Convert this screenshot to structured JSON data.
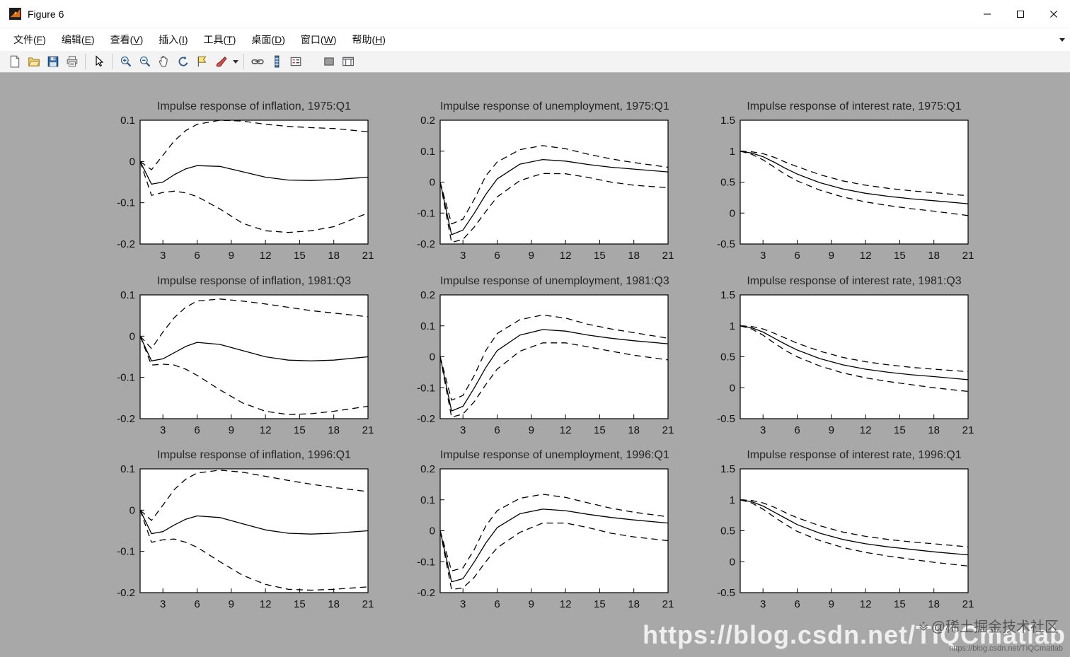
{
  "window": {
    "title": "Figure 6"
  },
  "menubar": {
    "items": [
      {
        "id": "file",
        "label": "文件(F)"
      },
      {
        "id": "edit",
        "label": "编辑(E)"
      },
      {
        "id": "view",
        "label": "查看(V)"
      },
      {
        "id": "insert",
        "label": "插入(I)"
      },
      {
        "id": "tools",
        "label": "工具(T)"
      },
      {
        "id": "desktop",
        "label": "桌面(D)"
      },
      {
        "id": "window",
        "label": "窗口(W)"
      },
      {
        "id": "help",
        "label": "帮助(H)"
      }
    ]
  },
  "toolbar": {
    "icons": [
      {
        "name": "new-figure-icon"
      },
      {
        "name": "open-file-icon"
      },
      {
        "name": "save-icon"
      },
      {
        "name": "print-icon"
      },
      {
        "name": "separator"
      },
      {
        "name": "edit-plot-icon"
      },
      {
        "name": "separator"
      },
      {
        "name": "zoom-in-icon"
      },
      {
        "name": "zoom-out-icon"
      },
      {
        "name": "pan-icon"
      },
      {
        "name": "rotate-3d-icon"
      },
      {
        "name": "data-cursor-icon"
      },
      {
        "name": "brush-icon"
      },
      {
        "name": "brush-dropdown-icon"
      },
      {
        "name": "separator"
      },
      {
        "name": "link-plot-icon"
      },
      {
        "name": "insert-colorbar-icon"
      },
      {
        "name": "insert-legend-icon"
      },
      {
        "name": "gap"
      },
      {
        "name": "hide-plot-tools-icon"
      },
      {
        "name": "show-plot-tools-icon"
      }
    ]
  },
  "colors": {
    "canvas_bg": "#a8a8a8",
    "line": "#000000",
    "axes_bg": "#ffffff"
  },
  "watermark": {
    "main": "https://blog.csdn.net/TIQCmatlab",
    "badge": "@稀土掘金技术社区",
    "sub": "https://blog.csdn.net/TIQCmatlab"
  },
  "chart_data": [
    {
      "type": "line",
      "title": "Impulse response of inflation, 1975:Q1",
      "xlabel": "",
      "ylabel": "",
      "xlim": [
        1,
        21
      ],
      "ylim": [
        -0.2,
        0.1
      ],
      "xticks": [
        3,
        6,
        9,
        12,
        15,
        18,
        21
      ],
      "yticks": [
        0.1,
        0,
        -0.1,
        -0.2
      ],
      "x": [
        1,
        2,
        3,
        4,
        5,
        6,
        8,
        10,
        12,
        14,
        16,
        18,
        21
      ],
      "series": [
        {
          "name": "upper-band",
          "style": "dashed",
          "values": [
            0,
            -0.02,
            0.015,
            0.05,
            0.075,
            0.09,
            0.1,
            0.098,
            0.09,
            0.085,
            0.082,
            0.08,
            0.072
          ]
        },
        {
          "name": "median",
          "style": "solid",
          "values": [
            0,
            -0.055,
            -0.05,
            -0.032,
            -0.018,
            -0.01,
            -0.012,
            -0.025,
            -0.038,
            -0.045,
            -0.046,
            -0.044,
            -0.038
          ]
        },
        {
          "name": "lower-band",
          "style": "dashed",
          "values": [
            0,
            -0.082,
            -0.075,
            -0.072,
            -0.076,
            -0.085,
            -0.115,
            -0.15,
            -0.168,
            -0.172,
            -0.168,
            -0.158,
            -0.125
          ]
        }
      ]
    },
    {
      "type": "line",
      "title": "Impulse response of unemployment, 1975:Q1",
      "xlabel": "",
      "ylabel": "",
      "xlim": [
        1,
        21
      ],
      "ylim": [
        -0.2,
        0.2
      ],
      "xticks": [
        3,
        6,
        9,
        12,
        15,
        18,
        21
      ],
      "yticks": [
        0.2,
        0.1,
        0,
        -0.1,
        -0.2
      ],
      "x": [
        1,
        2,
        3,
        4,
        5,
        6,
        8,
        10,
        12,
        14,
        16,
        18,
        21
      ],
      "series": [
        {
          "name": "upper-band",
          "style": "dashed",
          "values": [
            0,
            -0.135,
            -0.12,
            -0.055,
            0.02,
            0.065,
            0.105,
            0.118,
            0.108,
            0.09,
            0.075,
            0.063,
            0.048
          ]
        },
        {
          "name": "median",
          "style": "solid",
          "values": [
            0,
            -0.17,
            -0.155,
            -0.1,
            -0.04,
            0.01,
            0.058,
            0.073,
            0.068,
            0.057,
            0.048,
            0.042,
            0.033
          ]
        },
        {
          "name": "lower-band",
          "style": "dashed",
          "values": [
            0,
            -0.195,
            -0.185,
            -0.145,
            -0.095,
            -0.048,
            0.005,
            0.028,
            0.027,
            0.015,
            0,
            -0.01,
            -0.018
          ]
        }
      ]
    },
    {
      "type": "line",
      "title": "Impulse response of interest rate, 1975:Q1",
      "xlabel": "",
      "ylabel": "",
      "xlim": [
        1,
        21
      ],
      "ylim": [
        -0.5,
        1.5
      ],
      "xticks": [
        3,
        6,
        9,
        12,
        15,
        18,
        21
      ],
      "yticks": [
        1.5,
        1,
        0.5,
        0,
        -0.5
      ],
      "x": [
        1,
        2,
        3,
        4,
        5,
        6,
        8,
        10,
        12,
        14,
        16,
        18,
        21
      ],
      "series": [
        {
          "name": "upper-band",
          "style": "dashed",
          "values": [
            1,
            0.99,
            0.96,
            0.9,
            0.82,
            0.75,
            0.62,
            0.52,
            0.45,
            0.4,
            0.36,
            0.33,
            0.28
          ]
        },
        {
          "name": "median",
          "style": "solid",
          "values": [
            1,
            0.97,
            0.91,
            0.82,
            0.72,
            0.63,
            0.49,
            0.39,
            0.32,
            0.27,
            0.23,
            0.2,
            0.15
          ]
        },
        {
          "name": "lower-band",
          "style": "dashed",
          "values": [
            1,
            0.95,
            0.86,
            0.74,
            0.62,
            0.52,
            0.37,
            0.26,
            0.18,
            0.12,
            0.07,
            0.03,
            -0.04
          ]
        }
      ]
    },
    {
      "type": "line",
      "title": "Impulse response of inflation, 1981:Q3",
      "xlabel": "",
      "ylabel": "",
      "xlim": [
        1,
        21
      ],
      "ylim": [
        -0.2,
        0.1
      ],
      "xticks": [
        3,
        6,
        9,
        12,
        15,
        18,
        21
      ],
      "yticks": [
        0.1,
        0,
        -0.1,
        -0.2
      ],
      "x": [
        1,
        2,
        3,
        4,
        5,
        6,
        8,
        10,
        12,
        14,
        16,
        18,
        21
      ],
      "series": [
        {
          "name": "upper-band",
          "style": "dashed",
          "values": [
            0,
            -0.03,
            0.01,
            0.045,
            0.07,
            0.085,
            0.09,
            0.085,
            0.078,
            0.07,
            0.062,
            0.056,
            0.047
          ]
        },
        {
          "name": "median",
          "style": "solid",
          "values": [
            0,
            -0.06,
            -0.055,
            -0.04,
            -0.025,
            -0.015,
            -0.02,
            -0.035,
            -0.05,
            -0.058,
            -0.06,
            -0.058,
            -0.05
          ]
        },
        {
          "name": "lower-band",
          "style": "dashed",
          "values": [
            0,
            -0.07,
            -0.068,
            -0.07,
            -0.08,
            -0.095,
            -0.13,
            -0.162,
            -0.182,
            -0.19,
            -0.188,
            -0.182,
            -0.17
          ]
        }
      ]
    },
    {
      "type": "line",
      "title": "Impulse response of unemployment, 1981:Q3",
      "xlabel": "",
      "ylabel": "",
      "xlim": [
        1,
        21
      ],
      "ylim": [
        -0.2,
        0.2
      ],
      "xticks": [
        3,
        6,
        9,
        12,
        15,
        18,
        21
      ],
      "yticks": [
        0.2,
        0.1,
        0,
        -0.1,
        -0.2
      ],
      "x": [
        1,
        2,
        3,
        4,
        5,
        6,
        8,
        10,
        12,
        14,
        16,
        18,
        21
      ],
      "series": [
        {
          "name": "upper-band",
          "style": "dashed",
          "values": [
            0,
            -0.14,
            -0.125,
            -0.06,
            0.02,
            0.075,
            0.12,
            0.135,
            0.125,
            0.105,
            0.09,
            0.078,
            0.06
          ]
        },
        {
          "name": "median",
          "style": "solid",
          "values": [
            0,
            -0.175,
            -0.16,
            -0.1,
            -0.035,
            0.02,
            0.07,
            0.088,
            0.083,
            0.07,
            0.06,
            0.052,
            0.042
          ]
        },
        {
          "name": "lower-band",
          "style": "dashed",
          "values": [
            0,
            -0.195,
            -0.185,
            -0.145,
            -0.09,
            -0.04,
            0.018,
            0.045,
            0.045,
            0.032,
            0.018,
            0.005,
            -0.01
          ]
        }
      ]
    },
    {
      "type": "line",
      "title": "Impulse response of interest rate, 1981:Q3",
      "xlabel": "",
      "ylabel": "",
      "xlim": [
        1,
        21
      ],
      "ylim": [
        -0.5,
        1.5
      ],
      "xticks": [
        3,
        6,
        9,
        12,
        15,
        18,
        21
      ],
      "yticks": [
        1.5,
        1,
        0.5,
        0,
        -0.5
      ],
      "x": [
        1,
        2,
        3,
        4,
        5,
        6,
        8,
        10,
        12,
        14,
        16,
        18,
        21
      ],
      "series": [
        {
          "name": "upper-band",
          "style": "dashed",
          "values": [
            1,
            0.99,
            0.95,
            0.88,
            0.8,
            0.72,
            0.59,
            0.49,
            0.42,
            0.37,
            0.33,
            0.3,
            0.26
          ]
        },
        {
          "name": "median",
          "style": "solid",
          "values": [
            1,
            0.97,
            0.9,
            0.8,
            0.7,
            0.61,
            0.47,
            0.37,
            0.3,
            0.25,
            0.21,
            0.18,
            0.13
          ]
        },
        {
          "name": "lower-band",
          "style": "dashed",
          "values": [
            1,
            0.95,
            0.85,
            0.72,
            0.6,
            0.5,
            0.35,
            0.24,
            0.16,
            0.1,
            0.05,
            0,
            -0.06
          ]
        }
      ]
    },
    {
      "type": "line",
      "title": "Impulse response of inflation, 1996:Q1",
      "xlabel": "",
      "ylabel": "",
      "xlim": [
        1,
        21
      ],
      "ylim": [
        -0.2,
        0.1
      ],
      "xticks": [
        3,
        6,
        9,
        12,
        15,
        18,
        21
      ],
      "yticks": [
        0.1,
        0,
        -0.1,
        -0.2
      ],
      "x": [
        1,
        2,
        3,
        4,
        5,
        6,
        8,
        10,
        12,
        14,
        16,
        18,
        21
      ],
      "series": [
        {
          "name": "upper-band",
          "style": "dashed",
          "values": [
            0,
            -0.025,
            0.012,
            0.05,
            0.075,
            0.09,
            0.097,
            0.092,
            0.082,
            0.072,
            0.063,
            0.055,
            0.045
          ]
        },
        {
          "name": "median",
          "style": "solid",
          "values": [
            0,
            -0.057,
            -0.052,
            -0.036,
            -0.022,
            -0.014,
            -0.018,
            -0.033,
            -0.048,
            -0.056,
            -0.058,
            -0.056,
            -0.05
          ]
        },
        {
          "name": "lower-band",
          "style": "dashed",
          "values": [
            0,
            -0.078,
            -0.072,
            -0.07,
            -0.078,
            -0.09,
            -0.125,
            -0.158,
            -0.18,
            -0.192,
            -0.194,
            -0.192,
            -0.186
          ]
        }
      ]
    },
    {
      "type": "line",
      "title": "Impulse response of unemployment, 1996:Q1",
      "xlabel": "",
      "ylabel": "",
      "xlim": [
        1,
        21
      ],
      "ylim": [
        -0.2,
        0.2
      ],
      "xticks": [
        3,
        6,
        9,
        12,
        15,
        18,
        21
      ],
      "yticks": [
        0.2,
        0.1,
        0,
        -0.1,
        -0.2
      ],
      "x": [
        1,
        2,
        3,
        4,
        5,
        6,
        8,
        10,
        12,
        14,
        16,
        18,
        21
      ],
      "series": [
        {
          "name": "upper-band",
          "style": "dashed",
          "values": [
            0,
            -0.13,
            -0.12,
            -0.06,
            0.015,
            0.065,
            0.105,
            0.118,
            0.108,
            0.09,
            0.073,
            0.06,
            0.045
          ]
        },
        {
          "name": "median",
          "style": "solid",
          "values": [
            0,
            -0.165,
            -0.155,
            -0.1,
            -0.04,
            0.01,
            0.055,
            0.07,
            0.065,
            0.053,
            0.043,
            0.035,
            0.025
          ]
        },
        {
          "name": "lower-band",
          "style": "dashed",
          "values": [
            0,
            -0.19,
            -0.185,
            -0.15,
            -0.1,
            -0.055,
            -0.005,
            0.025,
            0.025,
            0.01,
            -0.008,
            -0.02,
            -0.032
          ]
        }
      ]
    },
    {
      "type": "line",
      "title": "Impulse response of interest rate, 1996:Q1",
      "xlabel": "",
      "ylabel": "",
      "xlim": [
        1,
        21
      ],
      "ylim": [
        -0.5,
        1.5
      ],
      "xticks": [
        3,
        6,
        9,
        12,
        15,
        18,
        21
      ],
      "yticks": [
        1.5,
        1,
        0.5,
        0,
        -0.5
      ],
      "x": [
        1,
        2,
        3,
        4,
        5,
        6,
        8,
        10,
        12,
        14,
        16,
        18,
        21
      ],
      "series": [
        {
          "name": "upper-band",
          "style": "dashed",
          "values": [
            1,
            0.99,
            0.95,
            0.88,
            0.79,
            0.71,
            0.58,
            0.48,
            0.41,
            0.36,
            0.32,
            0.29,
            0.24
          ]
        },
        {
          "name": "median",
          "style": "solid",
          "values": [
            1,
            0.97,
            0.9,
            0.8,
            0.7,
            0.6,
            0.46,
            0.36,
            0.29,
            0.24,
            0.2,
            0.16,
            0.11
          ]
        },
        {
          "name": "lower-band",
          "style": "dashed",
          "values": [
            1,
            0.95,
            0.85,
            0.72,
            0.6,
            0.49,
            0.34,
            0.23,
            0.15,
            0.09,
            0.04,
            -0.01,
            -0.07
          ]
        }
      ]
    }
  ]
}
